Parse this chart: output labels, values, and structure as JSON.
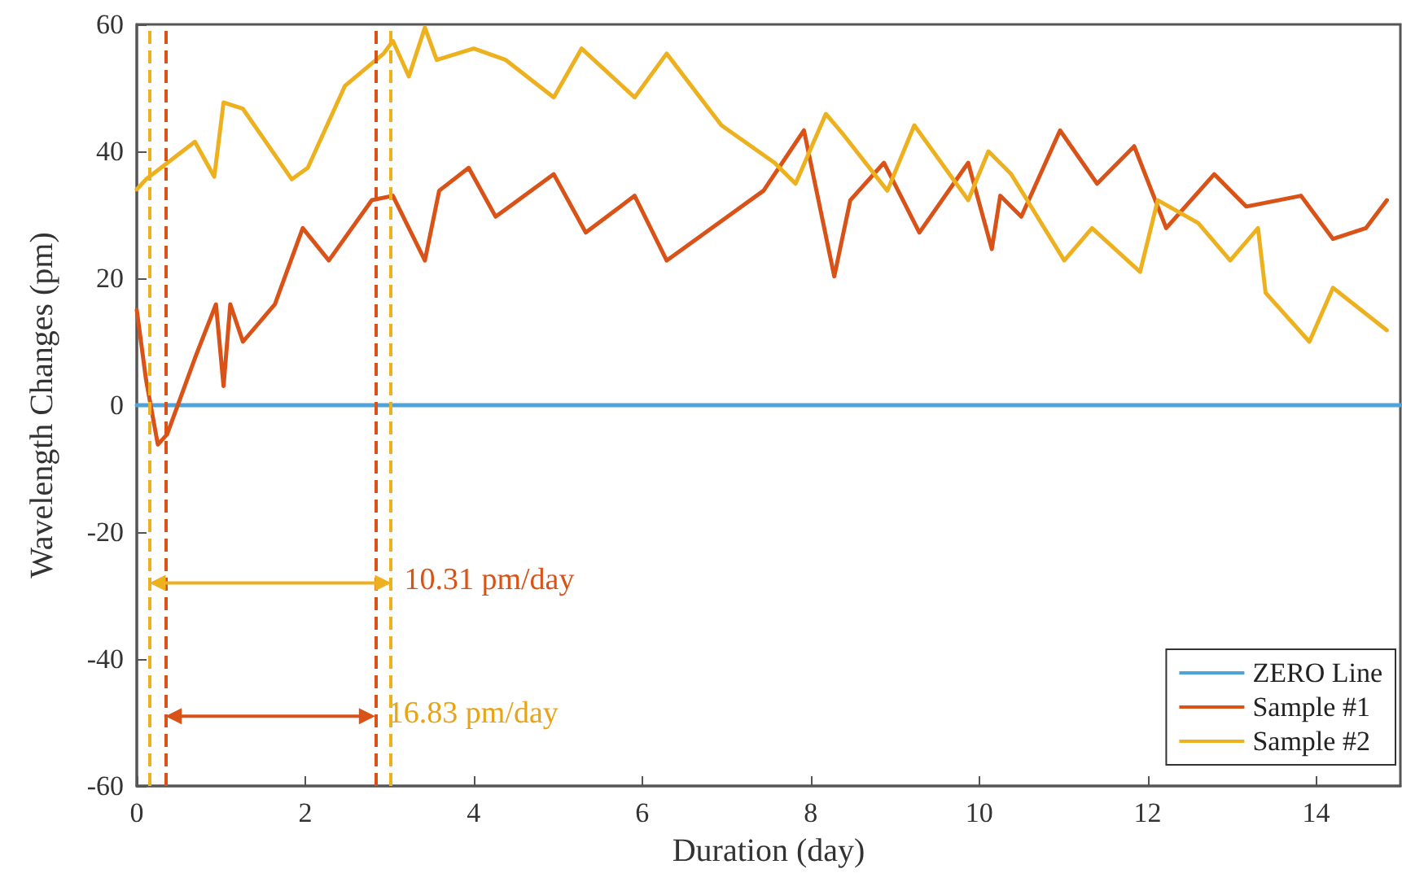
{
  "chart_data": {
    "type": "line",
    "xlabel": "Duration (day)",
    "ylabel": "Wavelength Changes (pm)",
    "xlim": [
      0,
      15
    ],
    "xticks": [
      0,
      2,
      4,
      6,
      8,
      10,
      12,
      14
    ],
    "ylim": [
      -60,
      60
    ],
    "yticks": [
      -60,
      -40,
      -20,
      0,
      20,
      40,
      60
    ],
    "grid": false,
    "legend": "bottom right",
    "marker": "none",
    "line_style": "solid",
    "series": [
      {
        "name": "ZERO Line",
        "color": "#4fa3d9",
        "x": [
          0,
          15
        ],
        "values": [
          0,
          0
        ]
      },
      {
        "name": "Sample #1",
        "color": "#d95319",
        "x": [
          0,
          0.11,
          0.25,
          0.36,
          0.69,
          0.94,
          1.03,
          1.11,
          1.26,
          1.64,
          1.97,
          2.28,
          2.79,
          3.04,
          3.42,
          3.59,
          3.94,
          4.26,
          4.95,
          5.33,
          5.91,
          6.29,
          7.44,
          7.92,
          8.28,
          8.47,
          8.87,
          9.29,
          9.87,
          10.15,
          10.25,
          10.5,
          10.96,
          11.4,
          11.84,
          12.22,
          12.79,
          13.17,
          13.82,
          14.2,
          14.59,
          14.84
        ],
        "values": [
          15,
          4,
          -6.2,
          -4.6,
          7.4,
          15.9,
          3,
          15.9,
          10,
          15.9,
          27.9,
          22.8,
          32.3,
          33,
          22.8,
          33.8,
          37.4,
          29.7,
          36.4,
          27.2,
          33,
          22.8,
          33.8,
          43.3,
          20.3,
          32.3,
          38.2,
          27.2,
          38.2,
          24.6,
          33,
          29.7,
          43.3,
          34.9,
          40.8,
          27.9,
          36.4,
          31.3,
          33,
          26.2,
          27.9,
          32.3
        ]
      },
      {
        "name": "Sample #2",
        "color": "#edb120",
        "x": [
          0,
          0.11,
          0.69,
          0.92,
          1.03,
          1.26,
          1.84,
          2.03,
          2.47,
          2.93,
          3.04,
          3.23,
          3.42,
          3.56,
          4.0,
          4.38,
          4.95,
          5.28,
          5.91,
          6.29,
          6.94,
          7.57,
          7.82,
          8.18,
          8.39,
          8.91,
          9.23,
          9.87,
          10.11,
          10.38,
          11.01,
          11.34,
          11.91,
          12.12,
          12.6,
          12.98,
          13.31,
          13.4,
          13.92,
          14.2,
          14.84
        ],
        "values": [
          34,
          35.6,
          41.5,
          36,
          47.7,
          46.7,
          35.6,
          37.4,
          50.3,
          55.4,
          57.4,
          51.8,
          59.5,
          54.4,
          56.2,
          54.4,
          48.5,
          56.2,
          48.5,
          55.4,
          44.1,
          38.2,
          34.9,
          45.9,
          42.6,
          33.8,
          44.1,
          32.3,
          40,
          36.4,
          22.8,
          27.9,
          21,
          32.3,
          28.7,
          22.8,
          27.9,
          17.7,
          10,
          18.5,
          11.8
        ]
      }
    ],
    "ref_lines": [
      {
        "axis": "x",
        "value": 0.15,
        "color": "#edb120",
        "line_style": "dashed"
      },
      {
        "axis": "x",
        "value": 0.34,
        "color": "#d95319",
        "line_style": "dashed"
      },
      {
        "axis": "x",
        "value": 2.83,
        "color": "#d95319",
        "line_style": "dashed"
      },
      {
        "axis": "x",
        "value": 3.02,
        "color": "#edb120",
        "line_style": "dashed"
      }
    ],
    "annotations": [
      {
        "text": "10.31 pm/day",
        "x": 3.02,
        "y": -28
      },
      {
        "text": "16.83 pm/day",
        "x": 2.83,
        "y": -49
      }
    ]
  }
}
